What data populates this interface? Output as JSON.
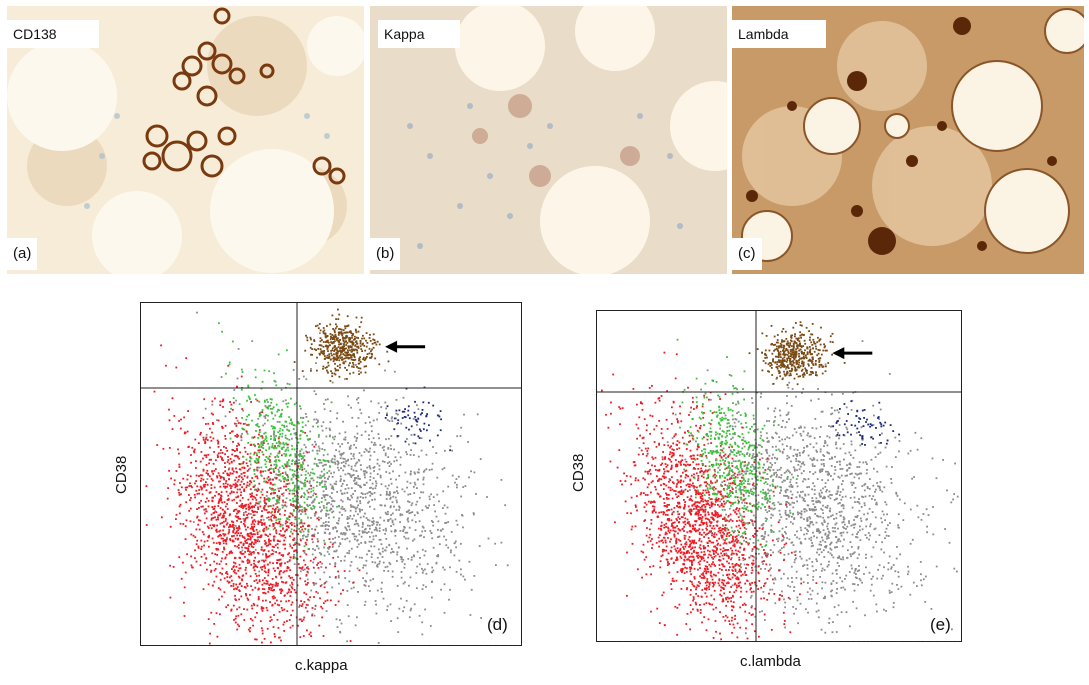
{
  "panels": [
    {
      "stain": "CD138",
      "letter": "(a)"
    },
    {
      "stain": "Kappa",
      "letter": "(b)"
    },
    {
      "stain": "Lambda",
      "letter": "(c)"
    }
  ],
  "chart_data": [
    {
      "type": "scatter",
      "letter": "(d)",
      "xlabel": "c.kappa",
      "ylabel": "CD38",
      "x_scale": "log",
      "quadrant_lines": "on",
      "annotation": "arrow pointing to brown cluster",
      "series_colors": [
        "#ee1b24",
        "#38c43a",
        "#8c8c8c",
        "#7a4a14",
        "#1f2a7a"
      ]
    },
    {
      "type": "scatter",
      "letter": "(e)",
      "xlabel": "c.lambda",
      "ylabel": "CD38",
      "x_scale": "log",
      "quadrant_lines": "on",
      "annotation": "arrow pointing to brown cluster",
      "series_colors": [
        "#ee1b24",
        "#38c43a",
        "#8c8c8c",
        "#7a4a14",
        "#1f2a7a"
      ]
    }
  ]
}
